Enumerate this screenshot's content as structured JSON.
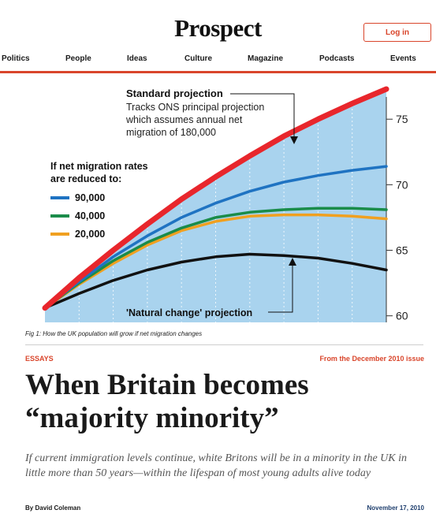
{
  "header": {
    "logo": "Prospect",
    "login_label": "Log in"
  },
  "nav": {
    "items": [
      "Politics",
      "People",
      "Ideas",
      "Culture",
      "Magazine",
      "Podcasts",
      "Events"
    ]
  },
  "colors": {
    "accent": "#d9452b",
    "chart_bg": "#a9d3ee",
    "date_blue": "#1f3f6e"
  },
  "chart_data": {
    "type": "line",
    "x": [
      0,
      0.1,
      0.2,
      0.3,
      0.4,
      0.5,
      0.6,
      0.7,
      0.8,
      0.9,
      1.0
    ],
    "series": [
      {
        "name": "Standard projection",
        "color": "#e8262c",
        "values": [
          60.6,
          62.9,
          65.0,
          67.0,
          68.9,
          70.6,
          72.2,
          73.7,
          75.0,
          76.2,
          77.3
        ]
      },
      {
        "name": "90,000",
        "color": "#1f73c2",
        "values": [
          60.6,
          62.6,
          64.5,
          66.1,
          67.5,
          68.6,
          69.5,
          70.2,
          70.7,
          71.1,
          71.4
        ]
      },
      {
        "name": "40,000",
        "color": "#1a8c4a",
        "values": [
          60.6,
          62.5,
          64.2,
          65.6,
          66.7,
          67.5,
          67.9,
          68.1,
          68.2,
          68.2,
          68.1
        ]
      },
      {
        "name": "20,000",
        "color": "#f0a020",
        "values": [
          60.6,
          62.4,
          64.0,
          65.4,
          66.5,
          67.2,
          67.6,
          67.7,
          67.7,
          67.6,
          67.4
        ]
      },
      {
        "name": "'Natural change' projection",
        "color": "#111111",
        "values": [
          60.6,
          61.7,
          62.7,
          63.5,
          64.1,
          64.5,
          64.7,
          64.6,
          64.4,
          64.0,
          63.5
        ]
      }
    ],
    "yticks": [
      60,
      65,
      70,
      75
    ],
    "ylim": [
      59.5,
      78.5
    ],
    "annotations": {
      "standard_title": "Standard projection",
      "standard_lines": [
        "Tracks ONS principal projection",
        "which assumes annual net",
        "migration of 180,000"
      ],
      "legend_title": [
        "If net migration rates",
        "are reduced to:"
      ],
      "legend_items": [
        "90,000",
        "40,000",
        "20,000"
      ],
      "natural_label": "'Natural change' projection"
    }
  },
  "caption": "Fig 1: How the UK population will grow if net migration changes",
  "article": {
    "tag": "ESSAYS",
    "issue": "From the December 2010 issue",
    "headline": "When Britain becomes “majority minority”",
    "standfirst": "If current immigration levels continue, white Britons will be in a minority in the UK in little more than 50 years—within the lifespan of most young adults alive today",
    "author_prefix": "By",
    "author": "David Coleman",
    "date": "November 17, 2010"
  }
}
